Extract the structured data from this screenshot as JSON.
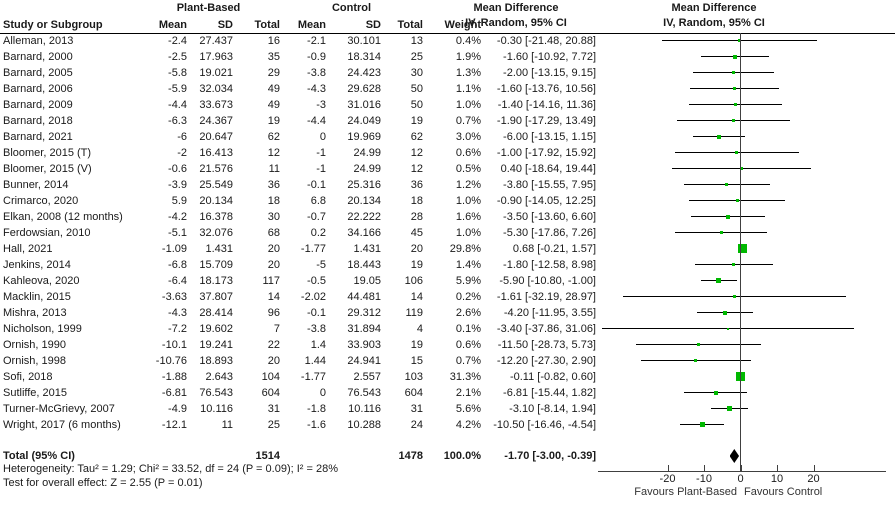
{
  "header": {
    "group1": "Plant-Based",
    "group2": "Control",
    "study_col": "Study or Subgroup",
    "mean": "Mean",
    "sd": "SD",
    "total": "Total",
    "weight": "Weight",
    "md_line1": "Mean Difference",
    "md_line2": "IV, Random, 95% CI",
    "plot_line1": "Mean Difference",
    "plot_line2": "IV, Random, 95% CI"
  },
  "colors": {
    "marker_green": "#00b800",
    "diamond_black": "#000000",
    "line_black": "#000000",
    "axis_gray": "#404040"
  },
  "chart_data": {
    "type": "scatter",
    "variant": "forest-plot-meta-analysis",
    "effect_measure": "Mean Difference IV, Random, 95% CI",
    "x_axis": {
      "ticks": [
        -20,
        -10,
        0,
        10,
        20
      ],
      "range": [
        -39,
        40
      ],
      "zero_line": 0
    },
    "favours_left": "Favours Plant-Based",
    "favours_right": "Favours Control",
    "studies": [
      {
        "name": "Alleman, 2013",
        "mean1": "-2.4",
        "sd1": "27.437",
        "total1": "16",
        "mean2": "-2.1",
        "sd2": "30.101",
        "total2": "13",
        "weight": "0.4%",
        "ci_text": "-0.30 [-21.48, 20.88]",
        "md": -0.3,
        "lo": -21.48,
        "hi": 20.88
      },
      {
        "name": "Barnard, 2000",
        "mean1": "-2.5",
        "sd1": "17.963",
        "total1": "35",
        "mean2": "-0.9",
        "sd2": "18.314",
        "total2": "25",
        "weight": "1.9%",
        "ci_text": "-1.60 [-10.92, 7.72]",
        "md": -1.6,
        "lo": -10.92,
        "hi": 7.72
      },
      {
        "name": "Barnard, 2005",
        "mean1": "-5.8",
        "sd1": "19.021",
        "total1": "29",
        "mean2": "-3.8",
        "sd2": "24.423",
        "total2": "30",
        "weight": "1.3%",
        "ci_text": "-2.00 [-13.15, 9.15]",
        "md": -2.0,
        "lo": -13.15,
        "hi": 9.15
      },
      {
        "name": "Barnard, 2006",
        "mean1": "-5.9",
        "sd1": "32.034",
        "total1": "49",
        "mean2": "-4.3",
        "sd2": "29.628",
        "total2": "50",
        "weight": "1.1%",
        "ci_text": "-1.60 [-13.76, 10.56]",
        "md": -1.6,
        "lo": -13.76,
        "hi": 10.56
      },
      {
        "name": "Barnard, 2009",
        "mean1": "-4.4",
        "sd1": "33.673",
        "total1": "49",
        "mean2": "-3",
        "sd2": "31.016",
        "total2": "50",
        "weight": "1.0%",
        "ci_text": "-1.40 [-14.16, 11.36]",
        "md": -1.4,
        "lo": -14.16,
        "hi": 11.36
      },
      {
        "name": "Barnard, 2018",
        "mean1": "-6.3",
        "sd1": "24.367",
        "total1": "19",
        "mean2": "-4.4",
        "sd2": "24.049",
        "total2": "19",
        "weight": "0.7%",
        "ci_text": "-1.90 [-17.29, 13.49]",
        "md": -1.9,
        "lo": -17.29,
        "hi": 13.49
      },
      {
        "name": "Barnard, 2021",
        "mean1": "-6",
        "sd1": "20.647",
        "total1": "62",
        "mean2": "0",
        "sd2": "19.969",
        "total2": "62",
        "weight": "3.0%",
        "ci_text": "-6.00 [-13.15, 1.15]",
        "md": -6.0,
        "lo": -13.15,
        "hi": 1.15
      },
      {
        "name": "Bloomer, 2015 (T)",
        "mean1": "-2",
        "sd1": "16.413",
        "total1": "12",
        "mean2": "-1",
        "sd2": "24.99",
        "total2": "12",
        "weight": "0.6%",
        "ci_text": "-1.00 [-17.92, 15.92]",
        "md": -1.0,
        "lo": -17.92,
        "hi": 15.92
      },
      {
        "name": "Bloomer, 2015 (V)",
        "mean1": "-0.6",
        "sd1": "21.576",
        "total1": "11",
        "mean2": "-1",
        "sd2": "24.99",
        "total2": "12",
        "weight": "0.5%",
        "ci_text": "0.40 [-18.64, 19.44]",
        "md": 0.4,
        "lo": -18.64,
        "hi": 19.44
      },
      {
        "name": "Bunner, 2014",
        "mean1": "-3.9",
        "sd1": "25.549",
        "total1": "36",
        "mean2": "-0.1",
        "sd2": "25.316",
        "total2": "36",
        "weight": "1.2%",
        "ci_text": "-3.80 [-15.55, 7.95]",
        "md": -3.8,
        "lo": -15.55,
        "hi": 7.95
      },
      {
        "name": "Crimarco, 2020",
        "mean1": "5.9",
        "sd1": "20.134",
        "total1": "18",
        "mean2": "6.8",
        "sd2": "20.134",
        "total2": "18",
        "weight": "1.0%",
        "ci_text": "-0.90 [-14.05, 12.25]",
        "md": -0.9,
        "lo": -14.05,
        "hi": 12.25
      },
      {
        "name": "Elkan, 2008 (12 months)",
        "mean1": "-4.2",
        "sd1": "16.378",
        "total1": "30",
        "mean2": "-0.7",
        "sd2": "22.222",
        "total2": "28",
        "weight": "1.6%",
        "ci_text": "-3.50 [-13.60, 6.60]",
        "md": -3.5,
        "lo": -13.6,
        "hi": 6.6
      },
      {
        "name": "Ferdowsian, 2010",
        "mean1": "-5.1",
        "sd1": "32.076",
        "total1": "68",
        "mean2": "0.2",
        "sd2": "34.166",
        "total2": "45",
        "weight": "1.0%",
        "ci_text": "-5.30 [-17.86, 7.26]",
        "md": -5.3,
        "lo": -17.86,
        "hi": 7.26
      },
      {
        "name": "Hall, 2021",
        "mean1": "-1.09",
        "sd1": "1.431",
        "total1": "20",
        "mean2": "-1.77",
        "sd2": "1.431",
        "total2": "20",
        "weight": "29.8%",
        "ci_text": "0.68 [-0.21, 1.57]",
        "md": 0.68,
        "lo": -0.21,
        "hi": 1.57
      },
      {
        "name": "Jenkins, 2014",
        "mean1": "-6.8",
        "sd1": "15.709",
        "total1": "20",
        "mean2": "-5",
        "sd2": "18.443",
        "total2": "19",
        "weight": "1.4%",
        "ci_text": "-1.80 [-12.58, 8.98]",
        "md": -1.8,
        "lo": -12.58,
        "hi": 8.98
      },
      {
        "name": "Kahleova, 2020",
        "mean1": "-6.4",
        "sd1": "18.173",
        "total1": "117",
        "mean2": "-0.5",
        "sd2": "19.05",
        "total2": "106",
        "weight": "5.9%",
        "ci_text": "-5.90 [-10.80, -1.00]",
        "md": -5.9,
        "lo": -10.8,
        "hi": -1.0
      },
      {
        "name": "Macklin, 2015",
        "mean1": "-3.63",
        "sd1": "37.807",
        "total1": "14",
        "mean2": "-2.02",
        "sd2": "44.481",
        "total2": "14",
        "weight": "0.2%",
        "ci_text": "-1.61 [-32.19, 28.97]",
        "md": -1.61,
        "lo": -32.19,
        "hi": 28.97
      },
      {
        "name": "Mishra, 2013",
        "mean1": "-4.3",
        "sd1": "28.414",
        "total1": "96",
        "mean2": "-0.1",
        "sd2": "29.312",
        "total2": "119",
        "weight": "2.6%",
        "ci_text": "-4.20 [-11.95, 3.55]",
        "md": -4.2,
        "lo": -11.95,
        "hi": 3.55
      },
      {
        "name": "Nicholson, 1999",
        "mean1": "-7.2",
        "sd1": "19.602",
        "total1": "7",
        "mean2": "-3.8",
        "sd2": "31.894",
        "total2": "4",
        "weight": "0.1%",
        "ci_text": "-3.40 [-37.86, 31.06]",
        "md": -3.4,
        "lo": -37.86,
        "hi": 31.06
      },
      {
        "name": "Ornish, 1990",
        "mean1": "-10.1",
        "sd1": "19.241",
        "total1": "22",
        "mean2": "1.4",
        "sd2": "33.903",
        "total2": "19",
        "weight": "0.6%",
        "ci_text": "-11.50 [-28.73, 5.73]",
        "md": -11.5,
        "lo": -28.73,
        "hi": 5.73
      },
      {
        "name": "Ornish, 1998",
        "mean1": "-10.76",
        "sd1": "18.893",
        "total1": "20",
        "mean2": "1.44",
        "sd2": "24.941",
        "total2": "15",
        "weight": "0.7%",
        "ci_text": "-12.20 [-27.30, 2.90]",
        "md": -12.2,
        "lo": -27.3,
        "hi": 2.9
      },
      {
        "name": "Sofi, 2018",
        "mean1": "-1.88",
        "sd1": "2.643",
        "total1": "104",
        "mean2": "-1.77",
        "sd2": "2.557",
        "total2": "103",
        "weight": "31.3%",
        "ci_text": "-0.11 [-0.82, 0.60]",
        "md": -0.11,
        "lo": -0.82,
        "hi": 0.6
      },
      {
        "name": "Sutliffe, 2015",
        "mean1": "-6.81",
        "sd1": "76.543",
        "total1": "604",
        "mean2": "0",
        "sd2": "76.543",
        "total2": "604",
        "weight": "2.1%",
        "ci_text": "-6.81 [-15.44, 1.82]",
        "md": -6.81,
        "lo": -15.44,
        "hi": 1.82
      },
      {
        "name": "Turner-McGrievy, 2007",
        "mean1": "-4.9",
        "sd1": "10.116",
        "total1": "31",
        "mean2": "-1.8",
        "sd2": "10.116",
        "total2": "31",
        "weight": "5.6%",
        "ci_text": "-3.10 [-8.14, 1.94]",
        "md": -3.1,
        "lo": -8.14,
        "hi": 1.94
      },
      {
        "name": "Wright, 2017 (6 months)",
        "mean1": "-12.1",
        "sd1": "11",
        "total1": "25",
        "mean2": "-1.6",
        "sd2": "10.288",
        "total2": "24",
        "weight": "4.2%",
        "ci_text": "-10.50 [-16.46, -4.54]",
        "md": -10.5,
        "lo": -16.46,
        "hi": -4.54
      }
    ],
    "total": {
      "label": "Total (95% CI)",
      "total1": "1514",
      "total2": "1478",
      "weight": "100.0%",
      "ci_text": "-1.70 [-3.00, -0.39]",
      "md": -1.7,
      "lo": -3.0,
      "hi": -0.39
    },
    "heterogeneity": "Heterogeneity: Tau² = 1.29; Chi² = 33.52, df = 24 (P = 0.09); I² = 28%",
    "overall_effect": "Test for overall effect: Z = 2.55 (P = 0.01)"
  }
}
